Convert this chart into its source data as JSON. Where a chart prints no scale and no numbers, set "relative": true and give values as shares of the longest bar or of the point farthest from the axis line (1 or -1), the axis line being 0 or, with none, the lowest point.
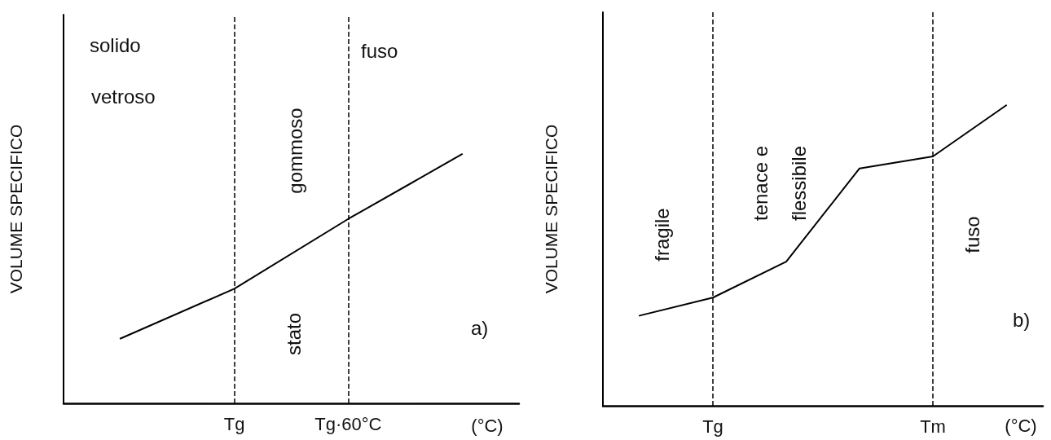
{
  "chart_data": [
    {
      "type": "line",
      "relative": true,
      "ylabel": "VOLUME SPECIFICO",
      "xlabel": "(°C)",
      "categories": [
        null,
        "Tg",
        "Tg·60°C",
        null
      ],
      "tick_labels": "x",
      "grid": false,
      "marker": "none",
      "line_style": "solid",
      "series": [
        {
          "color": "#000000",
          "values": [
            0.26,
            0.46,
            0.74,
            1
          ]
        }
      ],
      "ref_lines": [
        {
          "axis": "x",
          "value": "Tg",
          "line_style": "dashed",
          "color": "#000000"
        },
        {
          "axis": "x",
          "value": "Tg·60°C",
          "line_style": "dashed",
          "color": "#000000"
        }
      ],
      "annotations": [
        "solido",
        "vetroso",
        "gommoso",
        "stato",
        "fuso",
        "a)"
      ]
    },
    {
      "type": "line",
      "relative": true,
      "ylabel": "VOLUME SPECIFICO",
      "xlabel": "(°C)",
      "categories": [
        null,
        "Tg",
        null,
        null,
        "Tm",
        null
      ],
      "tick_labels": "x",
      "grid": false,
      "marker": "none",
      "line_style": "solid",
      "series": [
        {
          "color": "#000000",
          "values": [
            0.3,
            0.36,
            0.48,
            0.79,
            0.83,
            1
          ]
        }
      ],
      "ref_lines": [
        {
          "axis": "x",
          "value": "Tg",
          "line_style": "dashed",
          "color": "#000000"
        },
        {
          "axis": "x",
          "value": "Tm",
          "line_style": "dashed",
          "color": "#000000"
        }
      ],
      "annotations": [
        "fragile",
        "tenace e",
        "flessibile",
        "fuso",
        "b)"
      ]
    }
  ]
}
